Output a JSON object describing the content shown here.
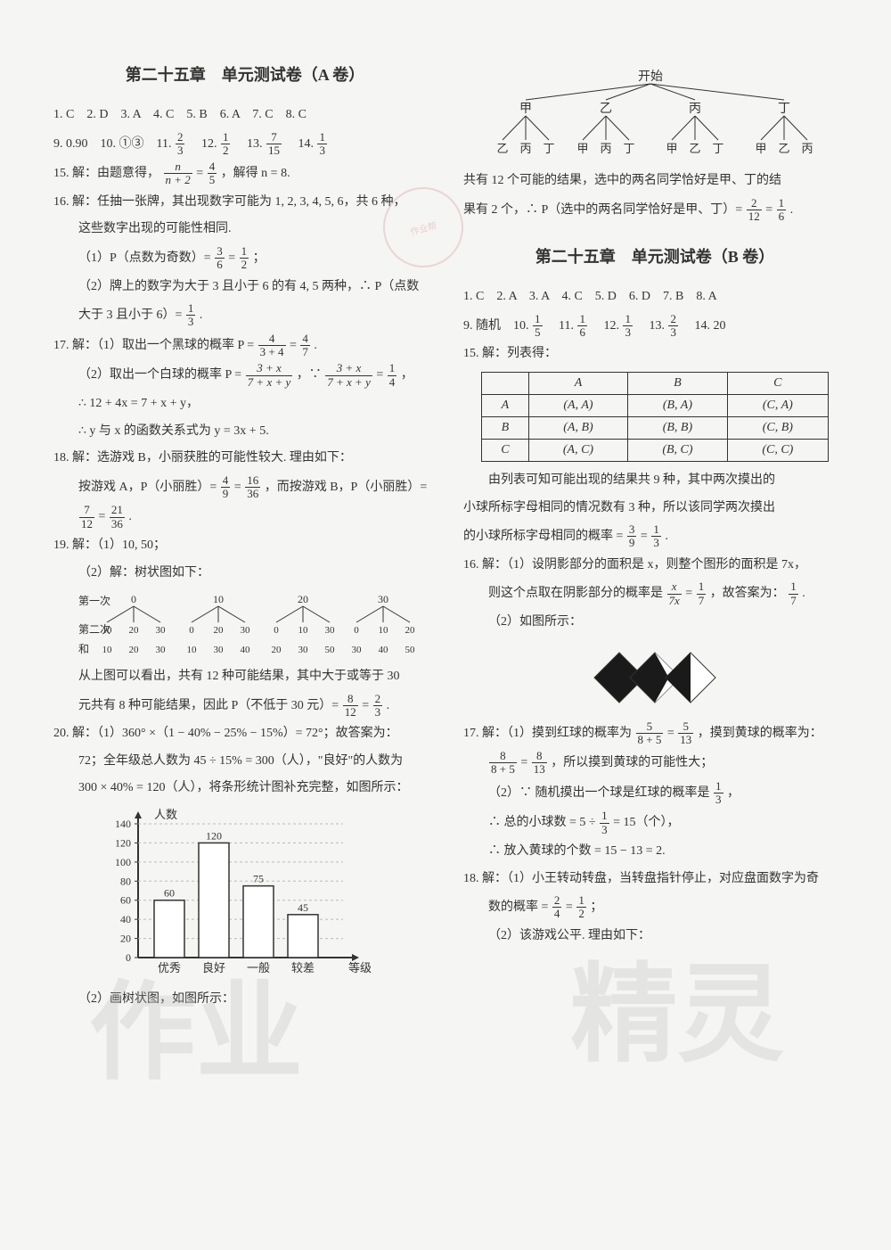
{
  "left": {
    "title": "第二十五章　单元测试卷（A 卷）",
    "ans_row1": "1. C　2. D　3. A　4. C　5. B　6. A　7. C　8. C",
    "q9_14_prefix": "9. 0.90　10. ①③　11. ",
    "f11_n": "2",
    "f11_d": "3",
    "q12_prefix": "　12. ",
    "f12_n": "1",
    "f12_d": "2",
    "q13_prefix": "　13. ",
    "f13_n": "7",
    "f13_d": "15",
    "q14_prefix": "　14. ",
    "f14_n": "1",
    "f14_d": "3",
    "q15_a": "15. 解：由题意得，",
    "f15a_n": "n",
    "f15a_d": "n + 2",
    "q15_b": " = ",
    "f15b_n": "4",
    "f15b_d": "5",
    "q15_c": "，解得 n = 8.",
    "q16_a": "16. 解：任抽一张牌，其出现数字可能为 1, 2, 3, 4, 5, 6，共 6 种，",
    "q16_b": "这些数字出现的可能性相同.",
    "q16_c_a": "（1）P（点数为奇数）= ",
    "f16c1_n": "3",
    "f16c1_d": "6",
    "q16_c_b": " = ",
    "f16c2_n": "1",
    "f16c2_d": "2",
    "q16_c_c": "；",
    "q16_d": "（2）牌上的数字为大于 3 且小于 6 的有 4, 5 两种，∴ P（点数",
    "q16_e_a": "大于 3 且小于 6）= ",
    "f16e_n": "1",
    "f16e_d": "3",
    "q16_e_b": ".",
    "q17_a_a": "17. 解：（1）取出一个黑球的概率 P = ",
    "f17a1_n": "4",
    "f17a1_d": "3 + 4",
    "q17_a_b": " = ",
    "f17a2_n": "4",
    "f17a2_d": "7",
    "q17_a_c": ".",
    "q17_b_a": "（2）取出一个白球的概率 P = ",
    "f17b1_n": "3 + x",
    "f17b1_d": "7 + x + y",
    "q17_b_b": "，∵ ",
    "f17b2_n": "3 + x",
    "f17b2_d": "7 + x + y",
    "q17_b_c": " = ",
    "f17b3_n": "1",
    "f17b3_d": "4",
    "q17_b_d": "，",
    "q17_c": "∴ 12 + 4x = 7 + x + y，",
    "q17_d": "∴ y 与 x 的函数关系式为 y = 3x + 5.",
    "q18_a": "18. 解：选游戏 B，小丽获胜的可能性较大. 理由如下：",
    "q18_b_a": "按游戏 A，P（小丽胜）= ",
    "f18b1_n": "4",
    "f18b1_d": "9",
    "q18_b_b": " = ",
    "f18b2_n": "16",
    "f18b2_d": "36",
    "q18_b_c": "，而按游戏 B，P（小丽胜）= ",
    "q18_c_a": "",
    "f18c1_n": "7",
    "f18c1_d": "12",
    "q18_c_b": " = ",
    "f18c2_n": "21",
    "f18c2_d": "36",
    "q18_c_c": ".",
    "q19_a": "19. 解：（1）10, 50；",
    "q19_b": "（2）解：树状图如下：",
    "tree2": {
      "level1": [
        "第一次",
        "0",
        "10",
        "20",
        "30"
      ],
      "level2": "第二次",
      "children": [
        [
          "10",
          "20",
          "30"
        ],
        [
          "0",
          "20",
          "30"
        ],
        [
          "0",
          "10",
          "30"
        ],
        [
          "0",
          "10",
          "20"
        ]
      ],
      "sums_label": "和",
      "sums": [
        "10",
        "20",
        "30",
        "10",
        "30",
        "40",
        "20",
        "30",
        "50",
        "30",
        "40",
        "50"
      ]
    },
    "q19_c": "从上图可以看出，共有 12 种可能结果，其中大于或等于 30",
    "q19_d_a": "元共有 8 种可能结果，因此 P（不低于 30 元）= ",
    "f19d1_n": "8",
    "f19d1_d": "12",
    "q19_d_b": " = ",
    "f19d2_n": "2",
    "f19d2_d": "3",
    "q19_d_c": ".",
    "q20_a": "20. 解：（1）360° ×（1 − 40% − 25% − 15%）= 72°；故答案为：",
    "q20_b": "72；全年级总人数为 45 ÷ 15% = 300（人），\"良好\"的人数为",
    "q20_c": "300 × 40% = 120（人），将条形统计图补充完整，如图所示：",
    "q20_d": "（2）画树状图，如图所示：",
    "bar": {
      "ylabel": "人数",
      "yticks": [
        0,
        20,
        40,
        60,
        80,
        100,
        120,
        140
      ],
      "cats": [
        "优秀",
        "良好",
        "一般",
        "较差",
        "等级"
      ],
      "vals": [
        60,
        120,
        75,
        45
      ],
      "labels": [
        "60",
        "120",
        "75",
        "45"
      ],
      "axis_color": "#333",
      "bar_fill": "#ffffff",
      "bar_stroke": "#333",
      "grid_color": "#bbb"
    }
  },
  "right": {
    "tree_top": {
      "root": "开始",
      "l1": [
        "甲",
        "乙",
        "丙",
        "丁"
      ],
      "l2": [
        [
          "乙",
          "丙",
          "丁"
        ],
        [
          "甲",
          "丙",
          "丁"
        ],
        [
          "甲",
          "乙",
          "丁"
        ],
        [
          "甲",
          "乙",
          "丙"
        ]
      ]
    },
    "r1": "共有 12 个可能的结果，选中的两名同学恰好是甲、丁的结",
    "r2_a": "果有 2 个，∴ P（选中的两名同学恰好是甲、丁）= ",
    "f_r2a_n": "2",
    "f_r2a_d": "12",
    "r2_b": " = ",
    "f_r2b_n": "1",
    "f_r2b_d": "6",
    "r2_c": ".",
    "titleB": "第二十五章　单元测试卷（B 卷）",
    "ansB_row1": "1. C　2. A　3. A　4. C　5. D　6. D　7. B　8. A",
    "ansB_9_a": "9. 随机　10. ",
    "fB10_n": "1",
    "fB10_d": "5",
    "ansB_11": "　11. ",
    "fB11_n": "1",
    "fB11_d": "6",
    "ansB_12": "　12. ",
    "fB12_n": "1",
    "fB12_d": "3",
    "ansB_13": "　13. ",
    "fB13_n": "2",
    "fB13_d": "3",
    "ansB_14": "　14. 20",
    "q15B": "15. 解：列表得：",
    "table": {
      "cols": [
        "",
        "A",
        "B",
        "C"
      ],
      "rows": [
        [
          "A",
          "(A, A)",
          "(B, A)",
          "(C, A)"
        ],
        [
          "B",
          "(A, B)",
          "(B, B)",
          "(C, B)"
        ],
        [
          "C",
          "(A, C)",
          "(B, C)",
          "(C, C)"
        ]
      ]
    },
    "q15B_b": "由列表可知可能出现的结果共 9 种，其中两次摸出的",
    "q15B_c": "小球所标字母相同的情况数有 3 种，所以该同学两次摸出",
    "q15B_d_a": "的小球所标字母相同的概率 = ",
    "f15Bd1_n": "3",
    "f15Bd1_d": "9",
    "q15B_d_b": " = ",
    "f15Bd2_n": "1",
    "f15Bd2_d": "3",
    "q15B_d_c": ".",
    "q16B_a": "16. 解：（1）设阴影部分的面积是 x，则整个图形的面积是 7x，",
    "q16B_b_a": "则这个点取在阴影部分的概率是",
    "f16Bb1_n": "x",
    "f16Bb1_d": "7x",
    "q16B_b_b": " = ",
    "f16Bb2_n": "1",
    "f16Bb2_d": "7",
    "q16B_b_c": "，故答案为：",
    "f16Bb3_n": "1",
    "f16Bb3_d": "7",
    "q16B_b_d": ".",
    "q16B_c": "（2）如图所示：",
    "q17B_a_a": "17. 解：（1）摸到红球的概率为",
    "f17Ba1_n": "5",
    "f17Ba1_d": "8 + 5",
    "q17B_a_b": " = ",
    "f17Ba2_n": "5",
    "f17Ba2_d": "13",
    "q17B_a_c": "，摸到黄球的概率为：",
    "q17B_b_a": "",
    "f17Bb1_n": "8",
    "f17Bb1_d": "8 + 5",
    "q17B_b_b": " = ",
    "f17Bb2_n": "8",
    "f17Bb2_d": "13",
    "q17B_b_c": "，所以摸到黄球的可能性大；",
    "q17B_c_a": "（2）∵ 随机摸出一个球是红球的概率是",
    "f17Bc_n": "1",
    "f17Bc_d": "3",
    "q17B_c_b": "，",
    "q17B_d_a": "∴ 总的小球数 = 5 ÷ ",
    "f17Bd_n": "1",
    "f17Bd_d": "3",
    "q17B_d_b": " = 15（个），",
    "q17B_e": "∴ 放入黄球的个数 = 15 − 13 = 2.",
    "q18B_a": "18. 解：（1）小王转动转盘，当转盘指针停止，对应盘面数字为奇",
    "q18B_b_a": "数的概率 = ",
    "f18Bb1_n": "2",
    "f18Bb1_d": "4",
    "q18B_b_b": " = ",
    "f18Bb2_n": "1",
    "f18Bb2_d": "2",
    "q18B_b_c": "；",
    "q18B_c": "（2）该游戏公平. 理由如下："
  },
  "diamond_colors": {
    "fill": "#1a1a1a",
    "bg": "#ffffff",
    "stroke": "#333"
  }
}
